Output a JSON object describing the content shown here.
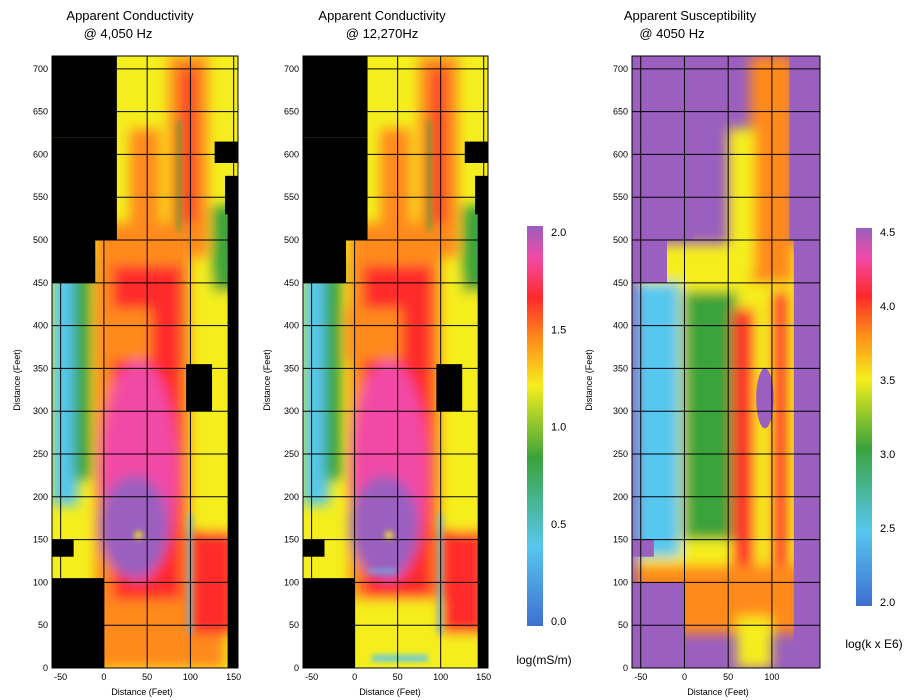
{
  "chart_data": [
    {
      "type": "heatmap",
      "title_line1": "Apparent Conductivity",
      "title_line2": "@ 4,050 Hz",
      "xlabel": "Distance (Feet)",
      "ylabel": "Distance (Feet)",
      "xlim": [
        -60,
        155
      ],
      "ylim": [
        0,
        715
      ],
      "xticks": [
        -50,
        0,
        50,
        100,
        150
      ],
      "yticks": [
        0,
        50,
        100,
        150,
        200,
        250,
        300,
        350,
        400,
        450,
        500,
        550,
        600,
        650,
        700
      ],
      "colorbar": "conductivity"
    },
    {
      "type": "heatmap",
      "title_line1": "Apparent Conductivity",
      "title_line2": "@ 12,270Hz",
      "xlabel": "Distance (Feet)",
      "ylabel": "Distance (Feet)",
      "xlim": [
        -60,
        155
      ],
      "ylim": [
        0,
        715
      ],
      "xticks": [
        -50,
        0,
        50,
        100,
        150
      ],
      "yticks": [
        0,
        50,
        100,
        150,
        200,
        250,
        300,
        350,
        400,
        450,
        500,
        550,
        600,
        650,
        700
      ],
      "colorbar": "conductivity"
    },
    {
      "type": "heatmap",
      "title_line1": "Apparent Susceptibility",
      "title_line2": "@ 4050 Hz",
      "xlabel": "Distance (Feet)",
      "ylabel": "Distance (Feet)",
      "xlim": [
        -60,
        155
      ],
      "ylim": [
        0,
        715
      ],
      "xticks": [
        -50,
        0,
        50,
        100
      ],
      "yticks": [
        0,
        50,
        100,
        150,
        200,
        250,
        300,
        350,
        400,
        450,
        500,
        550,
        600,
        650,
        700
      ],
      "colorbar": "susceptibility"
    }
  ],
  "colorbars": {
    "conductivity": {
      "range": [
        0.0,
        2.0
      ],
      "ticks": [
        "0.0",
        "0.5",
        "1.0",
        "1.5",
        "2.0"
      ],
      "unit": "log(mS/m)"
    },
    "susceptibility": {
      "range": [
        2.0,
        4.5
      ],
      "ticks": [
        "2.0",
        "2.5",
        "3.0",
        "3.5",
        "4.0",
        "4.5"
      ],
      "unit": "log(k x E6)"
    }
  },
  "colors": {
    "scale": [
      "#3f6fd0",
      "#57c7ee",
      "#3aa33a",
      "#f5ee1e",
      "#ff8a1a",
      "#ff2a2a",
      "#f24aa6",
      "#9a5fbf"
    ],
    "masked": "#000000",
    "outside_susceptibility": "#9a5fbf"
  }
}
